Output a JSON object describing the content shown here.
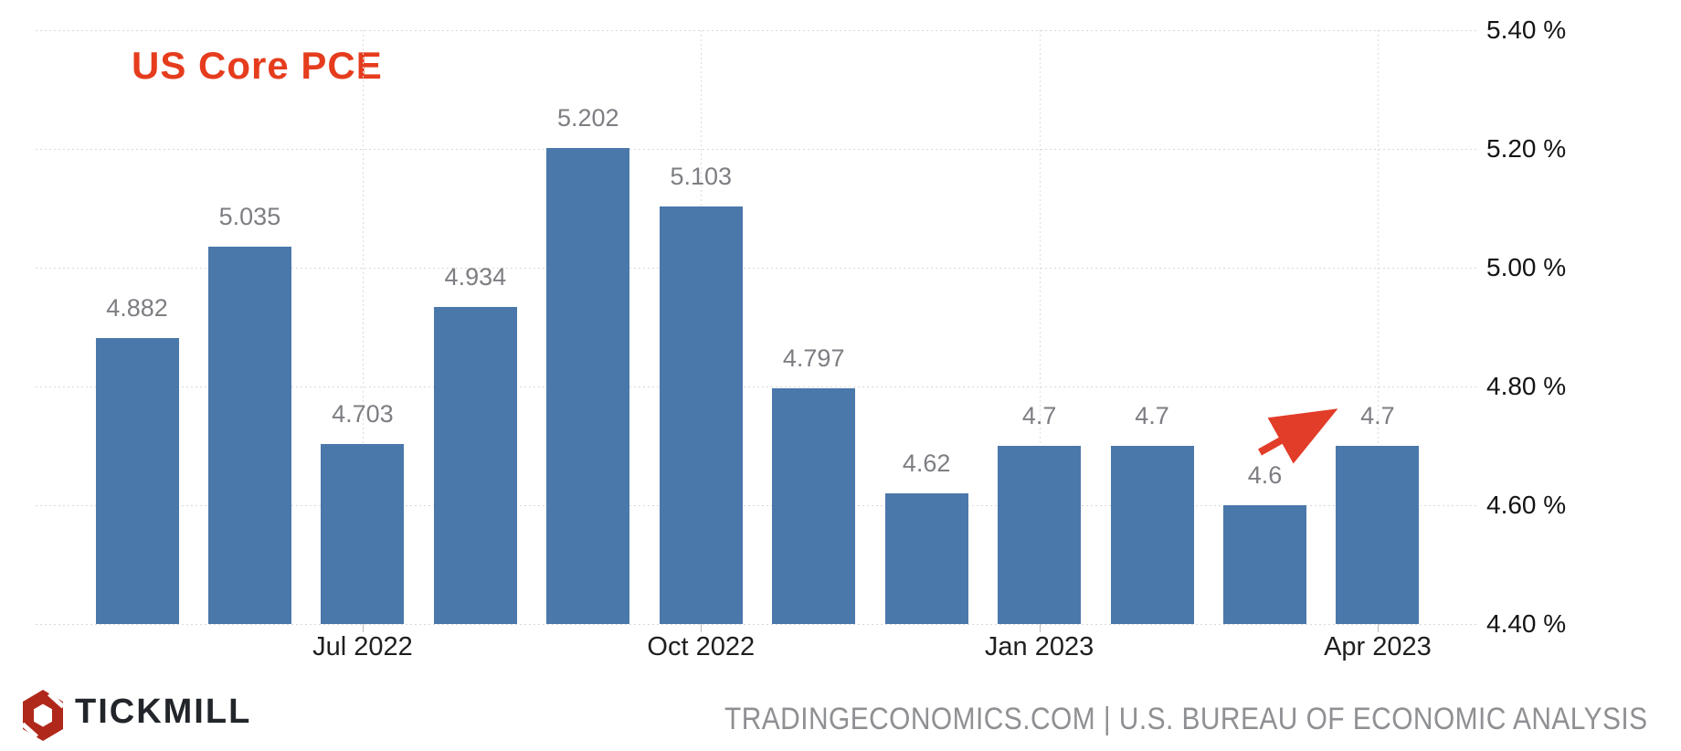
{
  "title": {
    "text": "US Core PCE",
    "color": "#e63c1e"
  },
  "chart_data": {
    "type": "bar",
    "values": [
      4.882,
      5.035,
      4.703,
      4.934,
      5.202,
      5.103,
      4.797,
      4.62,
      4.7,
      4.7,
      4.6,
      4.7
    ],
    "bar_labels": [
      "4.882",
      "5.035",
      "4.703",
      "4.934",
      "5.202",
      "5.103",
      "4.797",
      "4.62",
      "4.7",
      "4.7",
      "4.6",
      "4.7"
    ],
    "x_ticks": [
      {
        "index": 2,
        "label": "Jul 2022"
      },
      {
        "index": 5,
        "label": "Oct 2022"
      },
      {
        "index": 8,
        "label": "Jan 2023"
      },
      {
        "index": 11,
        "label": "Apr 2023"
      }
    ],
    "y_ticks": [
      {
        "value": 5.4,
        "label": "5.40 %"
      },
      {
        "value": 5.2,
        "label": "5.20 %"
      },
      {
        "value": 5.0,
        "label": "5.00 %"
      },
      {
        "value": 4.8,
        "label": "4.80 %"
      },
      {
        "value": 4.6,
        "label": "4.60 %"
      },
      {
        "value": 4.4,
        "label": "4.40 %"
      }
    ],
    "ylim": [
      4.4,
      5.4
    ],
    "grid": true,
    "legend": "none",
    "y_axis_side": "right",
    "bar_color": "#4a78aa",
    "annotation": {
      "type": "arrow",
      "color": "#e23d28",
      "points_to_label": "4.7"
    }
  },
  "footer": {
    "brand_text": "TICKMILL",
    "brand_color": "#b0281a",
    "source_text": "TRADINGECONOMICS.COM | U.S. BUREAU OF ECONOMIC ANALYSIS"
  }
}
